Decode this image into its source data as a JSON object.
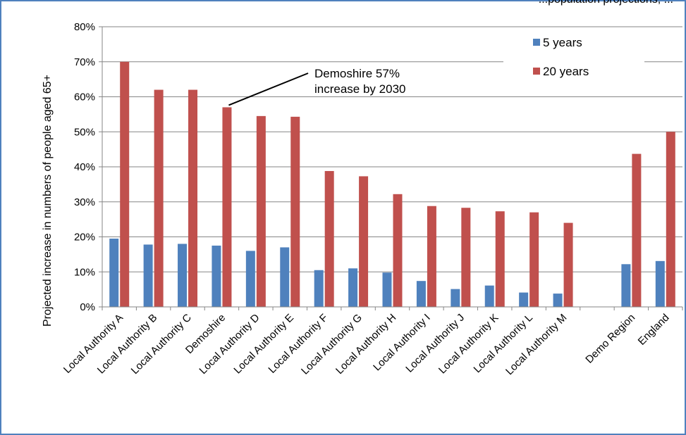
{
  "chart_data": {
    "type": "bar",
    "title_partial": "...population projections, ...",
    "ylabel": "Projected increase in numbers of people aged 65+",
    "ylim": [
      0,
      80
    ],
    "y_ticks": [
      "0%",
      "10%",
      "20%",
      "30%",
      "40%",
      "50%",
      "60%",
      "70%",
      "80%"
    ],
    "grid": true,
    "legend_position": "top-right",
    "categories": [
      "Local Authority A",
      "Local Authority B",
      "Local Authority C",
      "Demoshire",
      "Local Authority D",
      "Local Authority E",
      "Local Authority F",
      "Local Authority G",
      "Local Authority H",
      "Local Authority I",
      "Local Authority J",
      "Local Authority K",
      "Local Authority L",
      "Local Authority M",
      "",
      "Demo Region",
      "England"
    ],
    "series": [
      {
        "name": "5 years",
        "color": "#4f81bd",
        "values": [
          19.5,
          17.8,
          18.0,
          17.5,
          16.0,
          17.0,
          10.5,
          11.0,
          9.8,
          7.4,
          5.1,
          6.1,
          4.1,
          3.8,
          null,
          12.2,
          13.1
        ]
      },
      {
        "name": "20 years",
        "color": "#c0504d",
        "values": [
          70.0,
          62.0,
          62.0,
          57.0,
          54.5,
          54.3,
          38.8,
          37.3,
          32.2,
          28.8,
          28.3,
          27.3,
          27.0,
          24.0,
          null,
          43.7,
          50.0
        ]
      }
    ],
    "annotation": {
      "line1": "Demoshire 57%",
      "line2": "increase by 2030",
      "target_category": "Demoshire",
      "target_value": 57.0
    }
  }
}
